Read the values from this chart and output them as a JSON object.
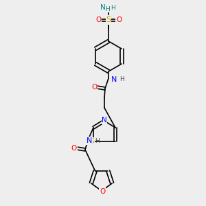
{
  "bg_color": "#eeeeee",
  "atom_colors": {
    "C": "#000000",
    "N": "#0000ff",
    "O": "#ff0000",
    "S_sulfonamide": "#ffcc00",
    "S_thiazole": "#ffcc00",
    "NH_amide": "#0000ff",
    "NH2": "#008080",
    "H": "#008080"
  },
  "bond_color": "#000000",
  "font_size": 7.5,
  "line_width": 1.2
}
